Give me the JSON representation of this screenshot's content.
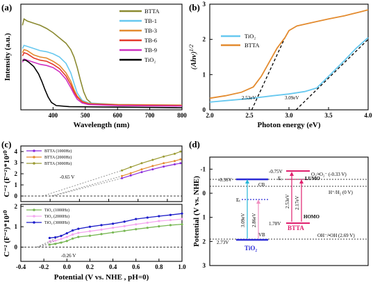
{
  "colors": {
    "BTTA": "#8b8a31",
    "TB-1": "#67c8ef",
    "TB-3": "#e38b2f",
    "TB-6": "#e43a2a",
    "TB-9": "#cf33c2",
    "TiO2": "#000000",
    "tio2_tauc": "#67c8ef",
    "btta_tauc": "#e38b2f",
    "btta1000": "#8b2bdb",
    "btta2000": "#e38b2f",
    "btta3000": "#9a9a32",
    "tio2_1000": "#77b752",
    "tio2_2000": "#f4a6ef",
    "tio2_3000": "#1c1cc9",
    "cb_blue": "#2b2bd6",
    "btta_red": "#e0206e",
    "pink": "#f090c0",
    "cyan": "#28b8d8"
  },
  "chart_data": [
    {
      "id": "a",
      "type": "line",
      "panel_label": "(a)",
      "xlabel": "Wavelength (nm)",
      "ylabel": "Intensity (a.u.)",
      "xlim": [
        300,
        800
      ],
      "xticks": [
        400,
        500,
        600,
        700,
        800
      ],
      "ylim": [
        0,
        1
      ],
      "legend_position": "top-right",
      "series": [
        {
          "name": "BTTA",
          "color_key": "BTTA",
          "points": [
            [
              305,
              0.8
            ],
            [
              310,
              0.86
            ],
            [
              320,
              0.84
            ],
            [
              340,
              0.82
            ],
            [
              360,
              0.8
            ],
            [
              380,
              0.77
            ],
            [
              400,
              0.73
            ],
            [
              420,
              0.68
            ],
            [
              440,
              0.63
            ],
            [
              455,
              0.57
            ],
            [
              465,
              0.5
            ],
            [
              475,
              0.4
            ],
            [
              485,
              0.28
            ],
            [
              495,
              0.17
            ],
            [
              505,
              0.1
            ],
            [
              520,
              0.06
            ],
            [
              560,
              0.05
            ],
            [
              650,
              0.045
            ],
            [
              800,
              0.04
            ]
          ]
        },
        {
          "name": "TB-1",
          "color_key": "TB-1",
          "points": [
            [
              305,
              0.58
            ],
            [
              310,
              0.61
            ],
            [
              320,
              0.6
            ],
            [
              340,
              0.58
            ],
            [
              360,
              0.56
            ],
            [
              380,
              0.55
            ],
            [
              400,
              0.53
            ],
            [
              420,
              0.5
            ],
            [
              440,
              0.44
            ],
            [
              455,
              0.35
            ],
            [
              465,
              0.25
            ],
            [
              475,
              0.16
            ],
            [
              490,
              0.09
            ],
            [
              510,
              0.065
            ],
            [
              600,
              0.05
            ],
            [
              800,
              0.045
            ]
          ]
        },
        {
          "name": "TB-3",
          "color_key": "TB-3",
          "points": [
            [
              305,
              0.54
            ],
            [
              310,
              0.57
            ],
            [
              320,
              0.56
            ],
            [
              340,
              0.52
            ],
            [
              360,
              0.5
            ],
            [
              380,
              0.49
            ],
            [
              400,
              0.46
            ],
            [
              420,
              0.42
            ],
            [
              440,
              0.35
            ],
            [
              455,
              0.27
            ],
            [
              465,
              0.19
            ],
            [
              475,
              0.13
            ],
            [
              490,
              0.08
            ],
            [
              510,
              0.06
            ],
            [
              600,
              0.05
            ],
            [
              800,
              0.045
            ]
          ]
        },
        {
          "name": "TB-6",
          "color_key": "TB-6",
          "points": [
            [
              305,
              0.51
            ],
            [
              310,
              0.54
            ],
            [
              320,
              0.53
            ],
            [
              340,
              0.49
            ],
            [
              360,
              0.47
            ],
            [
              380,
              0.46
            ],
            [
              400,
              0.43
            ],
            [
              420,
              0.39
            ],
            [
              440,
              0.32
            ],
            [
              455,
              0.24
            ],
            [
              465,
              0.17
            ],
            [
              475,
              0.12
            ],
            [
              490,
              0.075
            ],
            [
              510,
              0.055
            ],
            [
              600,
              0.045
            ],
            [
              800,
              0.04
            ]
          ]
        },
        {
          "name": "TB-9",
          "color_key": "TB-9",
          "points": [
            [
              305,
              0.45
            ],
            [
              310,
              0.48
            ],
            [
              320,
              0.47
            ],
            [
              340,
              0.45
            ],
            [
              360,
              0.43
            ],
            [
              380,
              0.42
            ],
            [
              400,
              0.4
            ],
            [
              420,
              0.36
            ],
            [
              440,
              0.29
            ],
            [
              455,
              0.21
            ],
            [
              465,
              0.15
            ],
            [
              475,
              0.1
            ],
            [
              490,
              0.065
            ],
            [
              510,
              0.05
            ],
            [
              600,
              0.04
            ],
            [
              800,
              0.035
            ]
          ]
        },
        {
          "name": "TiO₂",
          "color_key": "TiO2",
          "points": [
            [
              305,
              0.47
            ],
            [
              315,
              0.47
            ],
            [
              325,
              0.45
            ],
            [
              340,
              0.41
            ],
            [
              355,
              0.34
            ],
            [
              365,
              0.27
            ],
            [
              375,
              0.19
            ],
            [
              385,
              0.12
            ],
            [
              395,
              0.07
            ],
            [
              410,
              0.04
            ],
            [
              450,
              0.03
            ],
            [
              800,
              0.02
            ]
          ]
        }
      ]
    },
    {
      "id": "b",
      "type": "line",
      "panel_label": "(b)",
      "xlabel": "Photon energy (eV)",
      "ylabel": "(Ahv)¹ᐟ²",
      "xlim": [
        2.0,
        4.0
      ],
      "xticks": [
        "2.0",
        "2.5",
        "3.0",
        "3.5",
        "4.0"
      ],
      "ylim": [
        0,
        3
      ],
      "yticks": [
        "0",
        "1",
        "2",
        "3"
      ],
      "legend_position": "top-left",
      "series": [
        {
          "name": "TiO₂",
          "color_key": "tio2_tauc",
          "points": [
            [
              2.0,
              0.22
            ],
            [
              2.2,
              0.26
            ],
            [
              2.5,
              0.32
            ],
            [
              2.8,
              0.4
            ],
            [
              3.0,
              0.45
            ],
            [
              3.2,
              0.52
            ],
            [
              3.35,
              0.62
            ],
            [
              3.5,
              0.95
            ],
            [
              3.7,
              1.4
            ],
            [
              3.85,
              1.75
            ],
            [
              4.0,
              2.05
            ]
          ]
        },
        {
          "name": "BTTA",
          "color_key": "btta_tauc",
          "points": [
            [
              2.0,
              0.33
            ],
            [
              2.2,
              0.4
            ],
            [
              2.4,
              0.5
            ],
            [
              2.55,
              0.65
            ],
            [
              2.65,
              0.95
            ],
            [
              2.75,
              1.35
            ],
            [
              2.85,
              1.75
            ],
            [
              2.95,
              2.05
            ],
            [
              3.0,
              2.25
            ],
            [
              3.1,
              2.38
            ],
            [
              3.3,
              2.48
            ],
            [
              3.5,
              2.58
            ],
            [
              3.7,
              2.67
            ],
            [
              3.9,
              2.78
            ],
            [
              4.0,
              2.84
            ]
          ]
        }
      ],
      "fits": [
        [
          [
            2.53,
            0
          ],
          [
            2.95,
            2.05
          ]
        ],
        [
          [
            3.09,
            0
          ],
          [
            4.0,
            2.0
          ]
        ]
      ],
      "annotations": [
        "2.53eV",
        "3.09eV"
      ]
    },
    {
      "id": "c",
      "type": "scatter",
      "panel_label": "(c)",
      "xlabel": "Potential (V vs. NHE , pH=0)",
      "xlim": [
        -0.4,
        1.4
      ],
      "xticks": [
        "-0.4",
        "-0.2",
        "0.0",
        "0.2",
        "0.4",
        "0.6",
        "0.8",
        "1.0",
        "1.2"
      ],
      "subplots": [
        {
          "ylabel": "C⁻² (F⁻²)*10¹⁰",
          "xlim": [
            -0.8,
            1.4
          ],
          "xticks": [
            "-0.4",
            "0.0",
            "0.4",
            "0.8",
            "1.2"
          ],
          "ylim": [
            -0.5,
            4.5
          ],
          "yticks": [
            "0",
            "1",
            "2",
            "3",
            "4"
          ],
          "flat_band": "-0.65 V",
          "series": [
            {
              "name": "BTTA (1000Hz)",
              "color_key": "btta1000",
              "points": [
                [
                  0.58,
                  1.6
                ],
                [
                  0.7,
                  1.85
                ],
                [
                  0.85,
                  2.15
                ],
                [
                  1.0,
                  2.4
                ],
                [
                  1.15,
                  2.65
                ],
                [
                  1.3,
                  2.85
                ],
                [
                  1.38,
                  2.95
                ]
              ]
            },
            {
              "name": "BTTA (2000Hz)",
              "color_key": "btta2000",
              "points": [
                [
                  0.58,
                  1.8
                ],
                [
                  0.7,
                  2.05
                ],
                [
                  0.85,
                  2.4
                ],
                [
                  1.0,
                  2.7
                ],
                [
                  1.15,
                  2.95
                ],
                [
                  1.3,
                  3.15
                ],
                [
                  1.38,
                  3.3
                ]
              ]
            },
            {
              "name": "BTTA (3000Hz)",
              "color_key": "btta3000",
              "points": [
                [
                  0.58,
                  2.3
                ],
                [
                  0.7,
                  2.6
                ],
                [
                  0.85,
                  2.95
                ],
                [
                  1.0,
                  3.25
                ],
                [
                  1.15,
                  3.55
                ],
                [
                  1.3,
                  3.8
                ],
                [
                  1.38,
                  4.0
                ]
              ]
            }
          ]
        },
        {
          "ylabel": "C⁻² (F⁻²)*10¹⁰",
          "xlim": [
            -0.4,
            1.0
          ],
          "xticks": [
            "-0.4",
            "-0.2",
            "0.0",
            "0.2",
            "0.4",
            "0.6",
            "0.8",
            "1.0"
          ],
          "ylim": [
            -0.7,
            2.1
          ],
          "yticks": [
            "0",
            "1",
            "2"
          ],
          "flat_band": "-0.26 V",
          "series": [
            {
              "name": "TiO₂ (1000Hz)",
              "color_key": "tio2_1000",
              "points": [
                [
                  -0.15,
                  0.12
                ],
                [
                  -0.1,
                  0.16
                ],
                [
                  -0.05,
                  0.22
                ],
                [
                  0.0,
                  0.3
                ],
                [
                  0.05,
                  0.42
                ],
                [
                  0.1,
                  0.5
                ],
                [
                  0.2,
                  0.56
                ],
                [
                  0.3,
                  0.64
                ],
                [
                  0.4,
                  0.72
                ],
                [
                  0.5,
                  0.8
                ],
                [
                  0.6,
                  0.88
                ],
                [
                  0.7,
                  0.95
                ],
                [
                  0.8,
                  1.02
                ],
                [
                  0.9,
                  1.08
                ],
                [
                  1.0,
                  1.12
                ]
              ]
            },
            {
              "name": "TiO₂ (2000Hz)",
              "color_key": "tio2_2000",
              "points": [
                [
                  -0.15,
                  0.28
                ],
                [
                  -0.1,
                  0.32
                ],
                [
                  -0.05,
                  0.4
                ],
                [
                  0.0,
                  0.5
                ],
                [
                  0.05,
                  0.62
                ],
                [
                  0.1,
                  0.7
                ],
                [
                  0.2,
                  0.78
                ],
                [
                  0.3,
                  0.86
                ],
                [
                  0.4,
                  0.95
                ],
                [
                  0.5,
                  1.03
                ],
                [
                  0.6,
                  1.12
                ],
                [
                  0.7,
                  1.2
                ],
                [
                  0.8,
                  1.28
                ],
                [
                  0.9,
                  1.33
                ],
                [
                  1.0,
                  1.38
                ]
              ]
            },
            {
              "name": "TiO₂ (3000Hz)",
              "color_key": "tio2_3000",
              "points": [
                [
                  -0.15,
                  0.45
                ],
                [
                  -0.1,
                  0.48
                ],
                [
                  -0.05,
                  0.55
                ],
                [
                  0.0,
                  0.68
                ],
                [
                  0.05,
                  0.82
                ],
                [
                  0.1,
                  0.9
                ],
                [
                  0.2,
                  1.0
                ],
                [
                  0.3,
                  1.08
                ],
                [
                  0.4,
                  1.15
                ],
                [
                  0.5,
                  1.25
                ],
                [
                  0.6,
                  1.38
                ],
                [
                  0.7,
                  1.45
                ],
                [
                  0.8,
                  1.52
                ],
                [
                  0.9,
                  1.58
                ],
                [
                  1.0,
                  1.65
                ]
              ]
            }
          ]
        }
      ]
    },
    {
      "id": "d",
      "type": "diagram",
      "panel_label": "(d)",
      "ylabel": "Potential (V vs. NHE)",
      "ylim": [
        3,
        -1.5
      ],
      "yticks": [
        "-1",
        "0",
        "1",
        "2",
        "3"
      ],
      "levels": [
        {
          "label": "-0.36V",
          "value": -0.36,
          "band": "CB",
          "material": "TiO₂"
        },
        {
          "label": "2.73V",
          "value": 2.73,
          "band": "VB",
          "material": "TiO₂"
        },
        {
          "label": "-0.75V",
          "value": -0.75,
          "band": "LUMO",
          "material": "BTTA"
        },
        {
          "label": "1.78V",
          "value": 1.78,
          "band": "HOMO",
          "material": "BTTA"
        }
      ],
      "gaps": [
        "3.09eV",
        "2.86eV",
        "2.53eV",
        "2.17eV"
      ],
      "trap_labels": [
        "Eₜ",
        "Eₜ"
      ],
      "reference_lines": [
        {
          "text": "O₂/•O₂⁻ (-0.33 V)",
          "value": -0.33
        },
        {
          "text": "H⁺/H₂ (0 V)",
          "value": 0
        },
        {
          "text": "OH⁻/•OH (2.69 V)",
          "value": 2.69
        }
      ]
    }
  ]
}
